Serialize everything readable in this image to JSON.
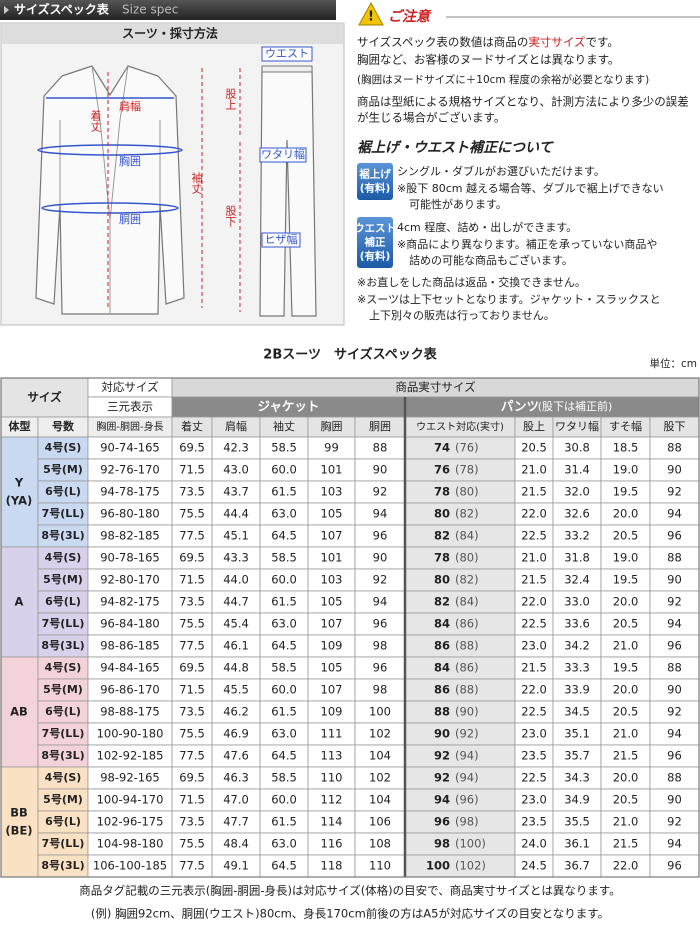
{
  "header": {
    "title": "サイズスペック表",
    "subtitle": "Size spec"
  },
  "measure": {
    "title": "スーツ・採寸方法",
    "labels": {
      "shoulder": "肩幅",
      "length": "着丈",
      "chest": "胸囲",
      "waist": "胴囲",
      "sleeve": "袖丈",
      "rise": "股上",
      "inseam": "股下",
      "pants_waist": "ウエスト",
      "thigh": "ワタリ幅",
      "knee": "ヒザ幅"
    }
  },
  "notes": {
    "title": "ご注意",
    "line1": [
      "サイズスペック表の数値は商品の",
      "実寸サイズ",
      "です。"
    ],
    "lines": [
      "胸囲など、お客様のヌードサイズとは異なります。",
      "(胸囲はヌードサイズに＋10cm 程度の余裕が必要となります)",
      "商品は型紙による規格サイズとなり、計測方法により多少の誤差",
      "が生じる場合がございます。"
    ]
  },
  "alteration": {
    "title": "裾上げ・ウエスト補正について",
    "items": [
      {
        "badge": [
          "裾上げ",
          "(有料)"
        ],
        "lines": [
          "シングル・ダブルがお選びいただけます。",
          "※股下 80cm 越える場合等、ダブルで裾上げできない",
          "可能性があります。"
        ]
      },
      {
        "badge": [
          "ウエスト",
          "補正",
          "(有料)"
        ],
        "lines": [
          "4cm 程度、詰め・出しができます。",
          "※商品により異なります。補正を承っていない商品や",
          "詰めの可能な商品もございます。"
        ]
      }
    ],
    "closing": [
      "※お直しをした商品は返品・交換できません。",
      "※スーツは上下セットとなります。ジャケット・スラックスと",
      "上下別々の販売は行っておりません。"
    ]
  },
  "table": {
    "title": "2Bスーツ　サイズスペック表",
    "unit": "単位：cm",
    "head": {
      "size": "サイズ",
      "fit": "対応サイズ",
      "actual": "商品実寸サイズ",
      "sangen": "三元表示",
      "jacket": "ジャケット",
      "pants": "パンツ",
      "pants_note": "(股下は補正前)",
      "columns": [
        "体型",
        "号数",
        "胸囲-胴囲-身長",
        "着丈",
        "肩幅",
        "袖丈",
        "胸囲",
        "胴囲",
        "ウエスト対応(実寸)",
        "股上",
        "ワタリ幅",
        "すそ幅",
        "股下"
      ]
    },
    "groups": [
      {
        "type": "Y",
        "type_sub": "(YA)",
        "rows": [
          [
            "4号(S)",
            "90-74-165",
            "69.5",
            "42.3",
            "58.5",
            "99",
            "88",
            "74",
            "(76)",
            "20.5",
            "30.8",
            "18.5",
            "88"
          ],
          [
            "5号(M)",
            "92-76-170",
            "71.5",
            "43.0",
            "60.0",
            "101",
            "90",
            "76",
            "(78)",
            "21.0",
            "31.4",
            "19.0",
            "90"
          ],
          [
            "6号(L)",
            "94-78-175",
            "73.5",
            "43.7",
            "61.5",
            "103",
            "92",
            "78",
            "(80)",
            "21.5",
            "32.0",
            "19.5",
            "92"
          ],
          [
            "7号(LL)",
            "96-80-180",
            "75.5",
            "44.4",
            "63.0",
            "105",
            "94",
            "80",
            "(82)",
            "22.0",
            "32.6",
            "20.0",
            "94"
          ],
          [
            "8号(3L)",
            "98-82-185",
            "77.5",
            "45.1",
            "64.5",
            "107",
            "96",
            "82",
            "(84)",
            "22.5",
            "33.2",
            "20.5",
            "96"
          ]
        ]
      },
      {
        "type": "A",
        "rows": [
          [
            "4号(S)",
            "90-78-165",
            "69.5",
            "43.3",
            "58.5",
            "101",
            "90",
            "78",
            "(80)",
            "21.0",
            "31.8",
            "19.0",
            "88"
          ],
          [
            "5号(M)",
            "92-80-170",
            "71.5",
            "44.0",
            "60.0",
            "103",
            "92",
            "80",
            "(82)",
            "21.5",
            "32.4",
            "19.5",
            "90"
          ],
          [
            "6号(L)",
            "94-82-175",
            "73.5",
            "44.7",
            "61.5",
            "105",
            "94",
            "82",
            "(84)",
            "22.0",
            "33.0",
            "20.0",
            "92"
          ],
          [
            "7号(LL)",
            "96-84-180",
            "75.5",
            "45.4",
            "63.0",
            "107",
            "96",
            "84",
            "(86)",
            "22.5",
            "33.6",
            "20.5",
            "94"
          ],
          [
            "8号(3L)",
            "98-86-185",
            "77.5",
            "46.1",
            "64.5",
            "109",
            "98",
            "86",
            "(88)",
            "23.0",
            "34.2",
            "21.0",
            "96"
          ]
        ]
      },
      {
        "type": "AB",
        "rows": [
          [
            "4号(S)",
            "94-84-165",
            "69.5",
            "44.8",
            "58.5",
            "105",
            "96",
            "84",
            "(86)",
            "21.5",
            "33.3",
            "19.5",
            "88"
          ],
          [
            "5号(M)",
            "96-86-170",
            "71.5",
            "45.5",
            "60.0",
            "107",
            "98",
            "86",
            "(88)",
            "22.0",
            "33.9",
            "20.0",
            "90"
          ],
          [
            "6号(L)",
            "98-88-175",
            "73.5",
            "46.2",
            "61.5",
            "109",
            "100",
            "88",
            "(90)",
            "22.5",
            "34.5",
            "20.5",
            "92"
          ],
          [
            "7号(LL)",
            "100-90-180",
            "75.5",
            "46.9",
            "63.0",
            "111",
            "102",
            "90",
            "(92)",
            "23.0",
            "35.1",
            "21.0",
            "94"
          ],
          [
            "8号(3L)",
            "102-92-185",
            "77.5",
            "47.6",
            "64.5",
            "113",
            "104",
            "92",
            "(94)",
            "23.5",
            "35.7",
            "21.5",
            "96"
          ]
        ]
      },
      {
        "type": "BB",
        "type_sub": "(BE)",
        "rows": [
          [
            "4号(S)",
            "98-92-165",
            "69.5",
            "46.3",
            "58.5",
            "110",
            "102",
            "92",
            "(94)",
            "22.5",
            "34.3",
            "20.0",
            "88"
          ],
          [
            "5号(M)",
            "100-94-170",
            "71.5",
            "47.0",
            "60.0",
            "112",
            "104",
            "94",
            "(96)",
            "23.0",
            "34.9",
            "20.5",
            "90"
          ],
          [
            "6号(L)",
            "102-96-175",
            "73.5",
            "47.7",
            "61.5",
            "114",
            "106",
            "96",
            "(98)",
            "23.5",
            "35.5",
            "21.0",
            "92"
          ],
          [
            "7号(LL)",
            "104-98-180",
            "75.5",
            "48.4",
            "63.0",
            "116",
            "108",
            "98",
            "(100)",
            "24.0",
            "36.1",
            "21.5",
            "94"
          ],
          [
            "8号(3L)",
            "106-100-185",
            "77.5",
            "49.1",
            "64.5",
            "118",
            "110",
            "100",
            "(102)",
            "24.5",
            "36.7",
            "22.0",
            "96"
          ]
        ]
      }
    ]
  },
  "footer": [
    "商品タグ記載の三元表示(胸囲-胴囲-身長)は対応サイズ(体格)の目安で、商品実寸サイズとは異なります。",
    "(例) 胸囲92cm、胴囲(ウエスト)80cm、身長170cm前後の方はA5が対応サイズの目安となります。"
  ]
}
